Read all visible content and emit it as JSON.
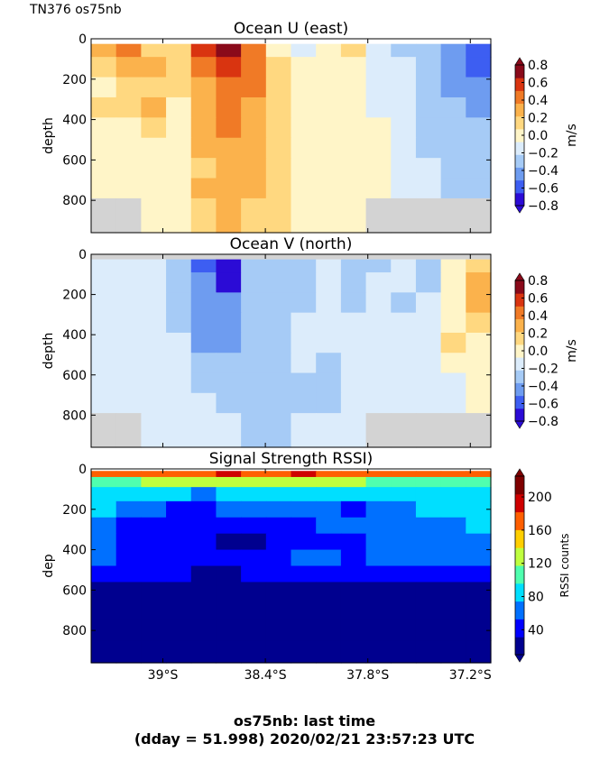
{
  "header": {
    "corner_label": "TN376 os75nb"
  },
  "footer": {
    "line1": "os75nb: last time",
    "line2": "(dday = 51.998) 2020/02/21 23:57:23 UTC"
  },
  "colors": {
    "no_data": "#d3d3d3",
    "diverging": [
      "#2b0bd6",
      "#3d5ef2",
      "#6e9cf0",
      "#a6cbf6",
      "#dcecfb",
      "#fff5c8",
      "#ffd880",
      "#fbb24c",
      "#f07a26",
      "#d93410",
      "#8a0a1a"
    ],
    "jet": [
      "#00008f",
      "#0000ff",
      "#0070ff",
      "#00dfff",
      "#4fffaf",
      "#bfff3f",
      "#ffcf00",
      "#ff5f00",
      "#cf0000",
      "#7f0000"
    ]
  },
  "chart_data": [
    {
      "type": "heatmap",
      "title": "Ocean U (east)",
      "ylabel": "depth",
      "colorbar_label": "m/s",
      "colorbar_ticks": [
        "0.8",
        "0.6",
        "0.4",
        "0.2",
        "0.0",
        "−0.2",
        "−0.4",
        "−0.6",
        "−0.8"
      ],
      "colorbar_range": [
        -0.8,
        0.8
      ],
      "y_ticks": [
        "0",
        "200",
        "400",
        "600",
        "800"
      ],
      "ylim": [
        960,
        0
      ],
      "x_ticks": [
        "39°S",
        "38.4°S",
        "37.8°S",
        "37.2°S"
      ],
      "x_tick_values": [
        -39.0,
        -38.4,
        -37.8,
        -37.2
      ],
      "xlim": [
        -39.42,
        -37.08
      ],
      "depths": [
        40,
        140,
        240,
        340,
        440,
        540,
        640,
        740,
        840
      ],
      "latitudes": [
        -39.35,
        -39.2,
        -39.05,
        -38.9,
        -38.75,
        -38.6,
        -38.45,
        -38.3,
        -38.15,
        -38.0,
        -37.85,
        -37.7,
        -37.55,
        -37.4,
        -37.25,
        -37.12
      ],
      "values": [
        [
          0.3,
          0.45,
          0.2,
          0.1,
          0.55,
          0.8,
          0.5,
          0.05,
          -0.1,
          0.05,
          0.1,
          -0.1,
          -0.3,
          -0.35,
          -0.45,
          -0.55
        ],
        [
          0.1,
          0.35,
          0.3,
          0.1,
          0.45,
          0.65,
          0.5,
          0.1,
          -0.05,
          0.05,
          0.05,
          -0.1,
          -0.2,
          -0.35,
          -0.45,
          -0.55
        ],
        [
          0.05,
          0.1,
          0.15,
          0.1,
          0.35,
          0.5,
          0.4,
          0.1,
          0.0,
          0.05,
          0.05,
          -0.1,
          -0.15,
          -0.3,
          -0.4,
          -0.5
        ],
        [
          0.1,
          0.1,
          0.25,
          0.05,
          0.3,
          0.45,
          0.35,
          0.1,
          -0.05,
          0.05,
          0.05,
          -0.1,
          -0.15,
          -0.3,
          -0.35,
          -0.5
        ],
        [
          0.05,
          0.05,
          0.1,
          0.05,
          0.3,
          0.4,
          0.3,
          0.15,
          0.0,
          0.05,
          0.05,
          -0.05,
          -0.15,
          -0.3,
          -0.35,
          -0.3
        ],
        [
          0.05,
          0.05,
          0.05,
          0.05,
          0.25,
          0.35,
          0.3,
          0.15,
          0.05,
          0.05,
          0.05,
          -0.05,
          -0.1,
          -0.25,
          -0.3,
          -0.3
        ],
        [
          0.05,
          0.05,
          0.05,
          0.05,
          0.2,
          0.3,
          0.25,
          0.2,
          0.05,
          0.05,
          0.05,
          -0.05,
          -0.1,
          -0.2,
          -0.3,
          -0.3
        ],
        [
          0.05,
          0.05,
          0.05,
          0.05,
          0.25,
          0.3,
          0.25,
          0.15,
          0.05,
          0.05,
          0.05,
          -0.05,
          -0.1,
          -0.2,
          -0.3,
          -0.25
        ],
        [
          null,
          null,
          0.05,
          0.05,
          0.2,
          0.25,
          0.2,
          0.1,
          0.05,
          0.05,
          0.05,
          null,
          null,
          null,
          null,
          null
        ]
      ]
    },
    {
      "type": "heatmap",
      "title": "Ocean V (north)",
      "ylabel": "depth",
      "colorbar_label": "m/s",
      "colorbar_ticks": [
        "0.8",
        "0.6",
        "0.4",
        "0.2",
        "0.0",
        "−0.2",
        "−0.4",
        "−0.6",
        "−0.8"
      ],
      "colorbar_range": [
        -0.8,
        0.8
      ],
      "y_ticks": [
        "0",
        "200",
        "400",
        "600",
        "800"
      ],
      "ylim": [
        960,
        0
      ],
      "x_ticks": [
        "39°S",
        "38.4°S",
        "37.8°S",
        "37.2°S"
      ],
      "x_tick_values": [
        -39.0,
        -38.4,
        -37.8,
        -37.2
      ],
      "xlim": [
        -39.42,
        -37.08
      ],
      "depths": [
        40,
        140,
        240,
        340,
        440,
        540,
        640,
        740,
        840
      ],
      "latitudes": [
        -39.35,
        -39.2,
        -39.05,
        -38.9,
        -38.75,
        -38.6,
        -38.45,
        -38.3,
        -38.15,
        -38.0,
        -37.85,
        -37.7,
        -37.55,
        -37.4,
        -37.25,
        -37.12
      ],
      "values": [
        [
          -0.15,
          -0.15,
          -0.2,
          -0.3,
          -0.65,
          -0.75,
          -0.35,
          -0.3,
          -0.3,
          -0.2,
          -0.3,
          -0.25,
          -0.2,
          -0.25,
          0.05,
          0.1
        ],
        [
          -0.15,
          -0.2,
          -0.15,
          -0.3,
          -0.5,
          -0.7,
          -0.3,
          -0.3,
          -0.35,
          -0.2,
          -0.25,
          -0.2,
          -0.2,
          -0.35,
          0.05,
          0.3
        ],
        [
          -0.15,
          -0.15,
          -0.15,
          -0.3,
          -0.45,
          -0.5,
          -0.3,
          -0.25,
          -0.3,
          -0.2,
          -0.25,
          -0.2,
          -0.25,
          -0.2,
          0.05,
          0.25
        ],
        [
          -0.15,
          -0.15,
          -0.15,
          -0.3,
          -0.45,
          -0.45,
          -0.35,
          -0.25,
          -0.2,
          -0.2,
          -0.2,
          -0.2,
          -0.2,
          -0.2,
          0.05,
          0.1
        ],
        [
          -0.15,
          -0.15,
          -0.15,
          -0.2,
          -0.4,
          -0.45,
          -0.35,
          -0.25,
          -0.2,
          -0.2,
          -0.15,
          -0.2,
          -0.2,
          -0.2,
          0.1,
          0.05
        ],
        [
          -0.15,
          -0.15,
          -0.15,
          -0.15,
          -0.3,
          -0.3,
          -0.3,
          -0.3,
          -0.2,
          -0.25,
          -0.15,
          -0.15,
          -0.2,
          -0.2,
          -0.05,
          0.05
        ],
        [
          -0.15,
          -0.15,
          -0.15,
          -0.15,
          -0.25,
          -0.3,
          -0.3,
          -0.3,
          -0.25,
          -0.25,
          -0.15,
          -0.15,
          -0.15,
          -0.2,
          -0.15,
          0.05
        ],
        [
          -0.15,
          -0.15,
          -0.15,
          -0.15,
          -0.2,
          -0.25,
          -0.25,
          -0.25,
          -0.25,
          -0.25,
          -0.15,
          -0.15,
          -0.15,
          -0.15,
          -0.15,
          0.05
        ],
        [
          null,
          null,
          -0.15,
          -0.15,
          -0.2,
          -0.2,
          -0.25,
          -0.25,
          -0.15,
          -0.15,
          -0.15,
          null,
          null,
          null,
          null,
          null
        ]
      ]
    },
    {
      "type": "heatmap",
      "title": "Signal Strength RSSI)",
      "ylabel": "dep",
      "colorbar_label": "RSSI counts",
      "colorbar_ticks": [
        "200",
        "160",
        "120",
        "80",
        "40"
      ],
      "colorbar_range": [
        10,
        225
      ],
      "y_ticks": [
        "0",
        "200",
        "400",
        "600",
        "800"
      ],
      "ylim": [
        960,
        0
      ],
      "x_ticks": [
        "39°S",
        "38.4°S",
        "37.8°S",
        "37.2°S"
      ],
      "x_tick_values": [
        -39.0,
        -38.4,
        -37.8,
        -37.2
      ],
      "xlim": [
        -39.42,
        -37.08
      ],
      "depths": [
        20,
        60,
        120,
        200,
        280,
        360,
        440,
        520,
        600,
        700,
        800,
        900
      ],
      "latitudes": [
        -39.35,
        -39.2,
        -39.05,
        -38.9,
        -38.75,
        -38.6,
        -38.45,
        -38.3,
        -38.15,
        -38.0,
        -37.85,
        -37.7,
        -37.55,
        -37.4,
        -37.25,
        -37.12
      ],
      "values": [
        [
          165,
          170,
          175,
          180,
          180,
          182,
          178,
          180,
          182,
          178,
          180,
          175,
          170,
          165,
          170,
          168
        ],
        [
          110,
          115,
          120,
          120,
          118,
          120,
          118,
          122,
          120,
          118,
          120,
          115,
          110,
          108,
          112,
          110
        ],
        [
          90,
          85,
          80,
          75,
          72,
          75,
          78,
          80,
          82,
          78,
          80,
          82,
          80,
          85,
          88,
          90
        ],
        [
          80,
          60,
          55,
          50,
          52,
          55,
          60,
          62,
          58,
          55,
          52,
          58,
          68,
          75,
          78,
          80
        ],
        [
          70,
          50,
          45,
          42,
          40,
          38,
          42,
          48,
          50,
          62,
          55,
          60,
          65,
          70,
          72,
          75
        ],
        [
          60,
          48,
          42,
          40,
          35,
          28,
          30,
          38,
          42,
          48,
          45,
          55,
          60,
          62,
          60,
          62
        ],
        [
          55,
          45,
          40,
          38,
          38,
          35,
          35,
          40,
          55,
          62,
          50,
          58,
          62,
          60,
          58,
          58
        ],
        [
          40,
          38,
          35,
          32,
          30,
          30,
          32,
          35,
          40,
          42,
          40,
          42,
          42,
          40,
          40,
          38
        ],
        [
          30,
          30,
          28,
          28,
          26,
          26,
          28,
          28,
          30,
          30,
          30,
          28,
          28,
          28,
          28,
          28
        ],
        [
          22,
          22,
          20,
          20,
          20,
          20,
          20,
          20,
          22,
          22,
          20,
          20,
          20,
          20,
          20,
          20
        ],
        [
          18,
          18,
          16,
          16,
          16,
          16,
          16,
          16,
          18,
          18,
          16,
          16,
          16,
          16,
          16,
          16
        ],
        [
          14,
          14,
          14,
          14,
          14,
          14,
          14,
          14,
          14,
          14,
          14,
          14,
          14,
          14,
          12,
          14
        ]
      ]
    }
  ]
}
